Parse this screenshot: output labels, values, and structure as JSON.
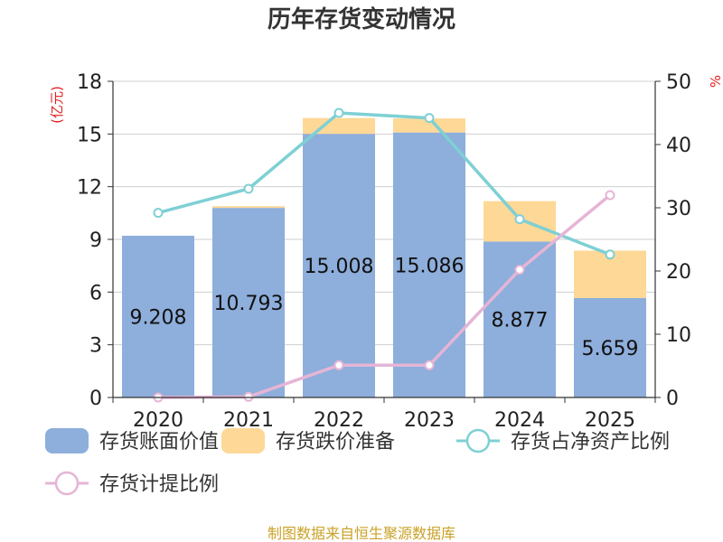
{
  "chart_data": {
    "type": "bar",
    "title": "历年存货变动情况",
    "categories": [
      "2020",
      "2021",
      "2022",
      "2023",
      "2024",
      "2025"
    ],
    "y_left": {
      "unit_label": "(亿元)",
      "ylim": [
        0,
        18
      ],
      "ticks": [
        "0",
        "3",
        "6",
        "9",
        "12",
        "15",
        "18"
      ]
    },
    "y_right": {
      "unit_label": "%",
      "ylim": [
        0,
        50
      ],
      "ticks": [
        "0",
        "10",
        "20",
        "30",
        "40",
        "50"
      ]
    },
    "series": [
      {
        "name": "存货账面价值",
        "type": "bar",
        "stack": "inv",
        "axis": "left",
        "color": "#8eaedb",
        "values": [
          9.208,
          10.793,
          15.008,
          15.086,
          8.877,
          5.659
        ],
        "labels": [
          "9.208",
          "10.793",
          "15.008",
          "15.086",
          "8.877",
          "5.659"
        ]
      },
      {
        "name": "存货跌价准备",
        "type": "bar",
        "stack": "inv",
        "axis": "left",
        "color": "#fed896",
        "values": [
          0.0,
          0.1,
          0.9,
          0.8,
          2.3,
          2.7
        ]
      },
      {
        "name": "存货占净资产比例",
        "type": "line",
        "axis": "right",
        "color": "#7ed0d4",
        "values": [
          29.2,
          33.0,
          45.0,
          44.2,
          28.2,
          22.6
        ]
      },
      {
        "name": "存货计提比例",
        "type": "line",
        "axis": "right",
        "color": "#e5b5d6",
        "values": [
          0.0,
          0.1,
          5.1,
          5.1,
          20.2,
          32.0
        ]
      }
    ],
    "grid": true,
    "legend_position": "bottom"
  },
  "source_note": "制图数据来自恒生聚源数据库"
}
